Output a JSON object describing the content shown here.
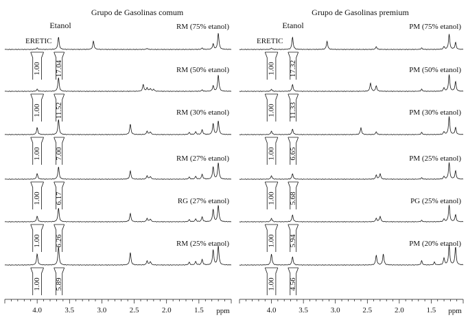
{
  "chart_data": {
    "type": "line",
    "xlabel": "ppm",
    "xlim": [
      4.5,
      1.0
    ],
    "xticks": [
      "4.0",
      "3.5",
      "3.0",
      "2.5",
      "2.0",
      "1.5"
    ],
    "annotations": {
      "etanol": "Etanol",
      "eretic": "ERETIC"
    },
    "panels": [
      {
        "title": "Grupo de Gasolinas comum",
        "spectra": [
          {
            "label": "RM (75% etanol)",
            "eretic_integral": "1.00",
            "etanol_integral": "17.04",
            "peaks": [
              [
                4.0,
                2
              ],
              [
                3.67,
                18
              ],
              [
                3.13,
                12
              ],
              [
                2.3,
                1.5
              ],
              [
                1.45,
                2
              ],
              [
                1.28,
                8
              ],
              [
                1.2,
                24
              ]
            ]
          },
          {
            "label": "RM (50% etanol)",
            "eretic_integral": "1.00",
            "etanol_integral": "11.52",
            "peaks": [
              [
                4.0,
                3
              ],
              [
                3.67,
                20
              ],
              [
                2.36,
                10
              ],
              [
                2.3,
                5
              ],
              [
                2.25,
                4
              ],
              [
                2.2,
                3
              ],
              [
                1.45,
                2
              ],
              [
                1.28,
                8
              ],
              [
                1.2,
                24
              ]
            ]
          },
          {
            "label": "RM (30% etanol)",
            "eretic_integral": "1.00",
            "etanol_integral": "7.00",
            "peaks": [
              [
                4.0,
                10
              ],
              [
                3.67,
                22
              ],
              [
                2.56,
                15
              ],
              [
                2.3,
                5
              ],
              [
                2.25,
                4
              ],
              [
                1.65,
                3
              ],
              [
                1.55,
                4
              ],
              [
                1.45,
                7
              ],
              [
                1.28,
                16
              ],
              [
                1.2,
                20
              ]
            ]
          },
          {
            "label": "RM (27% etanol)",
            "eretic_integral": "1.00",
            "etanol_integral": "6.17",
            "peaks": [
              [
                4.0,
                8
              ],
              [
                3.67,
                18
              ],
              [
                2.56,
                12
              ],
              [
                2.3,
                5
              ],
              [
                2.25,
                4
              ],
              [
                1.65,
                3
              ],
              [
                1.55,
                4
              ],
              [
                1.45,
                7
              ],
              [
                1.28,
                18
              ],
              [
                1.2,
                24
              ]
            ]
          },
          {
            "label": "RG (27% etanol)",
            "eretic_integral": "1.00",
            "etanol_integral": "6.26",
            "peaks": [
              [
                4.0,
                8
              ],
              [
                3.67,
                20
              ],
              [
                2.56,
                12
              ],
              [
                2.3,
                5
              ],
              [
                2.25,
                4
              ],
              [
                1.65,
                3
              ],
              [
                1.55,
                4
              ],
              [
                1.45,
                7
              ],
              [
                1.28,
                18
              ],
              [
                1.2,
                24
              ]
            ]
          },
          {
            "label": "RM (25% etanol)",
            "eretic_integral": "1.00",
            "etanol_integral": "5.89",
            "peaks": [
              [
                4.0,
                16
              ],
              [
                3.67,
                26
              ],
              [
                2.56,
                18
              ],
              [
                2.3,
                6
              ],
              [
                2.25,
                5
              ],
              [
                1.65,
                4
              ],
              [
                1.55,
                5
              ],
              [
                1.45,
                8
              ],
              [
                1.28,
                22
              ],
              [
                1.2,
                28
              ]
            ]
          }
        ]
      },
      {
        "title": "Grupo de Gasolinas premium",
        "spectra": [
          {
            "label": "PM (75% etanol)",
            "eretic_integral": "1.00",
            "etanol_integral": "17.32",
            "peaks": [
              [
                4.0,
                2
              ],
              [
                3.67,
                18
              ],
              [
                3.13,
                12
              ],
              [
                2.36,
                4
              ],
              [
                1.65,
                2
              ],
              [
                1.3,
                4
              ],
              [
                1.22,
                22
              ],
              [
                1.12,
                10
              ]
            ]
          },
          {
            "label": "PM (50% etanol)",
            "eretic_integral": "1.00",
            "etanol_integral": "11.33",
            "peaks": [
              [
                4.0,
                3
              ],
              [
                3.67,
                10
              ],
              [
                2.45,
                12
              ],
              [
                2.36,
                8
              ],
              [
                1.65,
                3
              ],
              [
                1.3,
                5
              ],
              [
                1.22,
                24
              ],
              [
                1.12,
                14
              ]
            ]
          },
          {
            "label": "PM (30% etanol)",
            "eretic_integral": "1.00",
            "etanol_integral": "6.65",
            "peaks": [
              [
                4.0,
                5
              ],
              [
                3.67,
                8
              ],
              [
                2.6,
                10
              ],
              [
                2.36,
                4
              ],
              [
                1.65,
                3
              ],
              [
                1.3,
                4
              ],
              [
                1.22,
                26
              ],
              [
                1.12,
                10
              ]
            ]
          },
          {
            "label": "PM (25% etanol)",
            "eretic_integral": "1.00",
            "etanol_integral": "5.68",
            "peaks": [
              [
                4.0,
                5
              ],
              [
                3.67,
                8
              ],
              [
                2.36,
                6
              ],
              [
                2.3,
                8
              ],
              [
                1.65,
                2
              ],
              [
                1.3,
                4
              ],
              [
                1.22,
                24
              ],
              [
                1.12,
                12
              ]
            ]
          },
          {
            "label": "PG (25% etanol)",
            "eretic_integral": "1.00",
            "etanol_integral": "5.94",
            "peaks": [
              [
                4.0,
                5
              ],
              [
                3.67,
                10
              ],
              [
                2.36,
                5
              ],
              [
                2.3,
                8
              ],
              [
                1.65,
                2
              ],
              [
                1.3,
                4
              ],
              [
                1.22,
                24
              ],
              [
                1.12,
                10
              ]
            ]
          },
          {
            "label": "PM (20% etanol)",
            "eretic_integral": "1.00",
            "etanol_integral": "4.56",
            "peaks": [
              [
                4.0,
                16
              ],
              [
                3.67,
                12
              ],
              [
                2.36,
                14
              ],
              [
                2.25,
                16
              ],
              [
                1.65,
                6
              ],
              [
                1.45,
                4
              ],
              [
                1.3,
                10
              ],
              [
                1.22,
                28
              ],
              [
                1.12,
                26
              ]
            ]
          }
        ]
      }
    ]
  }
}
